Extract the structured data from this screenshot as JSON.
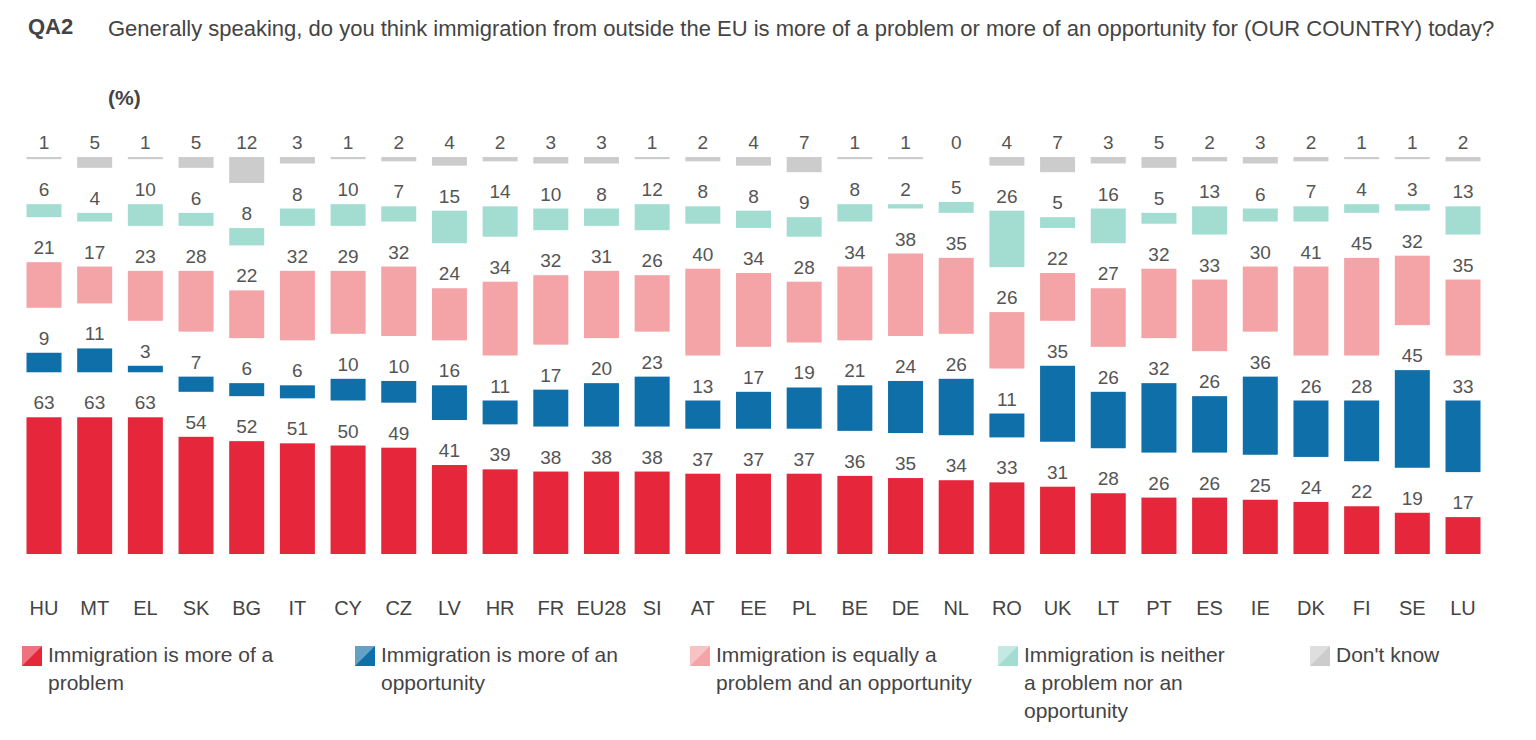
{
  "chart_data": {
    "type": "bar",
    "stacked": true,
    "data_labels": true,
    "tick_labels": "x",
    "annotations": [
      "QA2"
    ],
    "title": "Generally speaking, do you think immigration from outside the EU is more of a problem or more of an opportunity for (OUR COUNTRY) today?",
    "subtitle": "(%)",
    "categories": [
      "HU",
      "MT",
      "EL",
      "SK",
      "BG",
      "IT",
      "CY",
      "CZ",
      "LV",
      "HR",
      "FR",
      "EU28",
      "SI",
      "AT",
      "EE",
      "PL",
      "BE",
      "DE",
      "NL",
      "RO",
      "UK",
      "LT",
      "PT",
      "ES",
      "IE",
      "DK",
      "FI",
      "SE",
      "LU"
    ],
    "series": [
      {
        "name": "Immigration is more of a problem",
        "color": "#e5263b",
        "values": [
          63,
          63,
          63,
          54,
          52,
          51,
          50,
          49,
          41,
          39,
          38,
          38,
          38,
          37,
          37,
          37,
          36,
          35,
          34,
          33,
          31,
          28,
          26,
          26,
          25,
          24,
          22,
          19,
          17
        ]
      },
      {
        "name": "Immigration is more of an opportunity",
        "color": "#0f6fa8",
        "values": [
          9,
          11,
          3,
          7,
          6,
          6,
          10,
          10,
          16,
          11,
          17,
          20,
          23,
          13,
          17,
          19,
          21,
          24,
          26,
          11,
          35,
          26,
          32,
          26,
          36,
          26,
          28,
          45,
          33
        ]
      },
      {
        "name": "Immigration is equally a problem and an opportunity",
        "color": "#f4a3a6",
        "values": [
          21,
          17,
          23,
          28,
          22,
          32,
          29,
          32,
          24,
          34,
          32,
          31,
          26,
          40,
          34,
          28,
          34,
          38,
          35,
          26,
          22,
          27,
          32,
          33,
          30,
          41,
          45,
          32,
          35
        ]
      },
      {
        "name": "Immigration is neither a problem nor an opportunity",
        "color": "#a3ddd2",
        "values": [
          6,
          4,
          10,
          6,
          8,
          8,
          10,
          7,
          15,
          14,
          10,
          8,
          12,
          8,
          8,
          9,
          8,
          2,
          5,
          26,
          5,
          16,
          5,
          13,
          6,
          7,
          4,
          3,
          13
        ]
      },
      {
        "name": "Don't know",
        "color": "#cccccc",
        "values": [
          1,
          5,
          1,
          5,
          12,
          3,
          1,
          2,
          4,
          2,
          3,
          3,
          1,
          2,
          4,
          7,
          1,
          1,
          0,
          4,
          7,
          3,
          5,
          2,
          3,
          2,
          1,
          1,
          2
        ]
      }
    ]
  }
}
